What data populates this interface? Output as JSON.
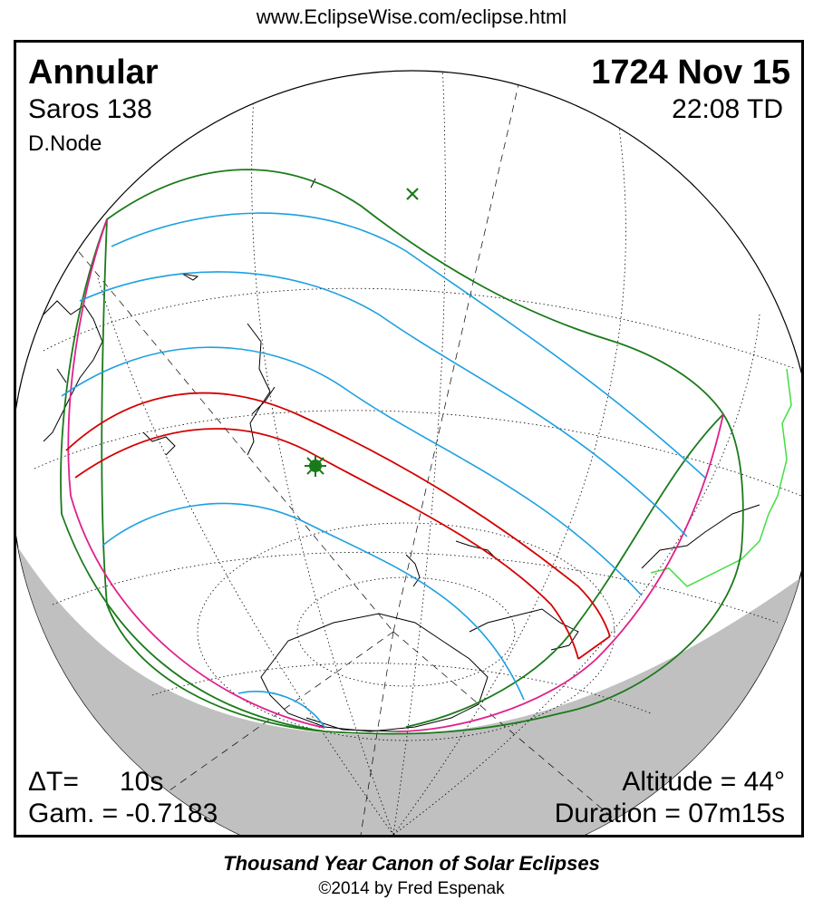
{
  "url": "www.EclipseWise.com/eclipse.html",
  "eclipse_type": "Annular",
  "date": "1724 Nov 15",
  "saros": "Saros 138",
  "time": "22:08 TD",
  "node": "D.Node",
  "delta_t_label": "ΔT=",
  "delta_t_value": "10s",
  "gamma": "Gam. = -0.7183",
  "altitude": "Altitude = 44°",
  "duration": "Duration = 07m15s",
  "footer_title": "Thousand Year Canon of Solar Eclipses",
  "footer_copy": "©2014 by Fred Espenak",
  "colors": {
    "central_path": "#d40000",
    "magnitude_lines": "#1ca0e0",
    "penumbra_limits": "#1a7a1a",
    "rise_set_curves": "#e0208a",
    "night_shade": "#c0c0c0",
    "coastline": "#000000",
    "alt_coastline": "#44dd44"
  },
  "markers": [
    {
      "name": "greatest-eclipse",
      "symbol": "asterisk",
      "color": "#1a7a1a"
    },
    {
      "name": "subsolar-point",
      "symbol": "x",
      "color": "#1a7a1a"
    }
  ]
}
